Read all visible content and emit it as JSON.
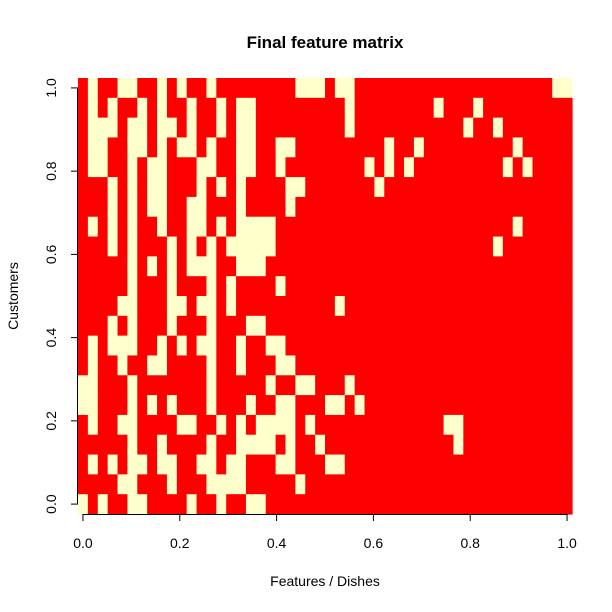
{
  "chart_data": {
    "type": "heatmap",
    "title": "Final feature matrix",
    "xlabel": "Features / Dishes",
    "ylabel": "Customers",
    "xlim": [
      0,
      1
    ],
    "ylim": [
      0,
      1
    ],
    "x_ticks": [
      "0.0",
      "0.2",
      "0.4",
      "0.6",
      "0.8",
      "1.0"
    ],
    "y_ticks": [
      "0.0",
      "0.2",
      "0.4",
      "0.6",
      "0.8",
      "1.0"
    ],
    "n_features": 50,
    "n_customers": 22,
    "colors": {
      "0": "#FFFFCC",
      "1": "#FF0000"
    },
    "rows_top_to_bottom": [
      "10110011010110111111110001001111111111111111111100",
      "10101101011011010011111111101111111101110111111111",
      "10001001001011010011111111101111111111101101111111",
      "10011001010010110011001111111110110111111111011111",
      "10011010011100110011011111111010101111111110101111",
      "11101010011101010111100111111101111111111111111111",
      "11101010011001110111101111111111111111111111111111",
      "10101011011001010000111111111111111111111111011111",
      "11101011101010100000111111111111111111111101111111",
      "11111010101000110001111111111111111111111111111111",
      "11111011101110101111011111111111111111111111111111",
      "11110011100100101111111111011111111111111111111111",
      "11101011101110111001111111111111111111111111111111",
      "10100011010100110110011111111111111111111111111111",
      "10110110011110110111001111111111111111111111111111",
      "00111011111110111110110011101111111111111111111111",
      "00111010101110111011001110010111111111111111111111",
      "10110011110011010100001011111111111110011111111111",
      "11111011011110110000101101111111111111011111111111",
      "10101001001100100111001110011111111111111111111111",
      "11110011101110000111110111111111111111111111111111",
      "01011001111011011001111111111111111111111111111111"
    ]
  }
}
